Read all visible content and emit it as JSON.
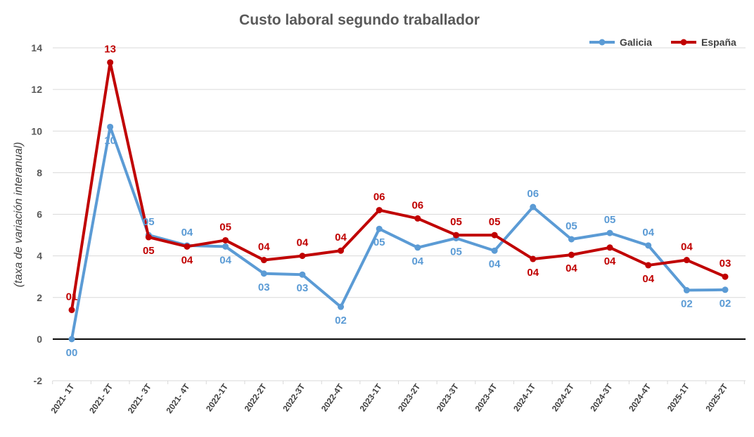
{
  "chart_data": {
    "type": "line",
    "title": "Custo laboral segundo traballador",
    "ylabel": "(taxa de variación interanual)",
    "xlabel": "",
    "ylim": [
      -2,
      14
    ],
    "yticks": [
      -2,
      0,
      2,
      4,
      6,
      8,
      10,
      12,
      14
    ],
    "grid": true,
    "legend_position": "top-right",
    "categories": [
      "2021- 1T",
      "2021- 2T",
      "2021- 3T",
      "2021- 4T",
      "2022-1T",
      "2022-2T",
      "2022-3T",
      "2022-4T",
      "2023-1T",
      "2023-2T",
      "2023-3T",
      "2023-4T",
      "2024-1T",
      "2024-2T",
      "2024-3T",
      "2024-4T",
      "2025-1T",
      "2025-2T"
    ],
    "series": [
      {
        "name": "Galicia",
        "color": "#5B9BD5",
        "values": [
          0.0,
          10.2,
          5.0,
          4.5,
          4.45,
          3.15,
          3.1,
          1.55,
          5.3,
          4.4,
          4.85,
          4.25,
          6.35,
          4.8,
          5.1,
          4.5,
          2.35,
          2.37
        ],
        "labels": [
          "00",
          "10",
          "05",
          "04",
          "04",
          "03",
          "03",
          "02",
          "05",
          "04",
          "05",
          "04",
          "06",
          "05",
          "05",
          "04",
          "02",
          "02"
        ]
      },
      {
        "name": "España",
        "color": "#C00000",
        "values": [
          1.4,
          13.3,
          4.9,
          4.45,
          4.75,
          3.8,
          4.0,
          4.25,
          6.2,
          5.8,
          5.0,
          5.0,
          3.85,
          4.05,
          4.4,
          3.55,
          3.8,
          3.0
        ],
        "labels": [
          "01",
          "13",
          "05",
          "04",
          "05",
          "04",
          "04",
          "04",
          "06",
          "06",
          "05",
          "05",
          "04",
          "04",
          "04",
          "04",
          "04",
          "03"
        ]
      }
    ]
  }
}
